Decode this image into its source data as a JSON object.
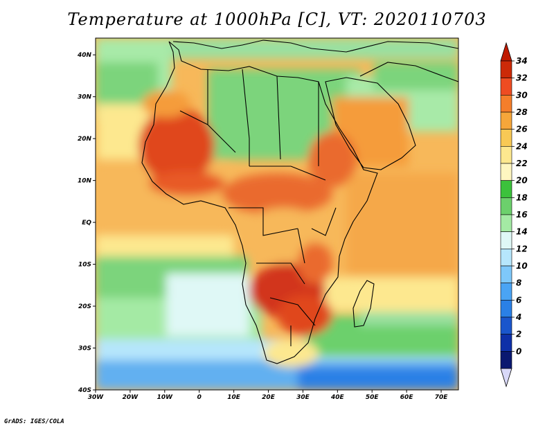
{
  "title": "Temperature at 1000hPa [C], VT: 2020110703",
  "credit": "GrADS: IGES/COLA",
  "map": {
    "lat_labels": [
      "40N",
      "30N",
      "20N",
      "10N",
      "EQ",
      "10S",
      "20S",
      "30S",
      "40S"
    ],
    "lat_values": [
      40,
      30,
      20,
      10,
      0,
      -10,
      -20,
      -30,
      -40
    ],
    "lon_labels": [
      "30W",
      "20W",
      "10W",
      "0",
      "10E",
      "20E",
      "30E",
      "40E",
      "50E",
      "60E",
      "70E"
    ],
    "lon_values": [
      -30,
      -20,
      -10,
      0,
      10,
      20,
      30,
      40,
      50,
      60,
      70
    ],
    "lat_range": [
      -40,
      44
    ],
    "lon_range": [
      -30,
      75
    ],
    "colors": {
      "ocean_warm": "#f5c56a",
      "ocean_mid": "#fde88f",
      "land_hot": "#e0461e",
      "land_warm": "#f59c3a",
      "land_green": "#6cd06c",
      "cool_cyan": "#c8f4f8",
      "cool_blue": "#62b0f0"
    }
  },
  "colorbar": {
    "levels": [
      "34",
      "32",
      "30",
      "28",
      "26",
      "24",
      "22",
      "20",
      "18",
      "16",
      "14",
      "12",
      "10",
      "8",
      "6",
      "4",
      "2",
      "0"
    ],
    "colors": [
      "#cc2a08",
      "#ee4c22",
      "#f57e2a",
      "#f6a63a",
      "#f8c955",
      "#fde88f",
      "#fef6c0",
      "#3cc23c",
      "#6cd06c",
      "#a4eaa4",
      "#dff8f6",
      "#b6e6fc",
      "#7ec8fa",
      "#4aa4f4",
      "#2a80e6",
      "#1a56cc",
      "#0e30a8",
      "#0a1870"
    ],
    "cap_top": "#c01a00",
    "cap_bottom": "#d8d8f8"
  }
}
